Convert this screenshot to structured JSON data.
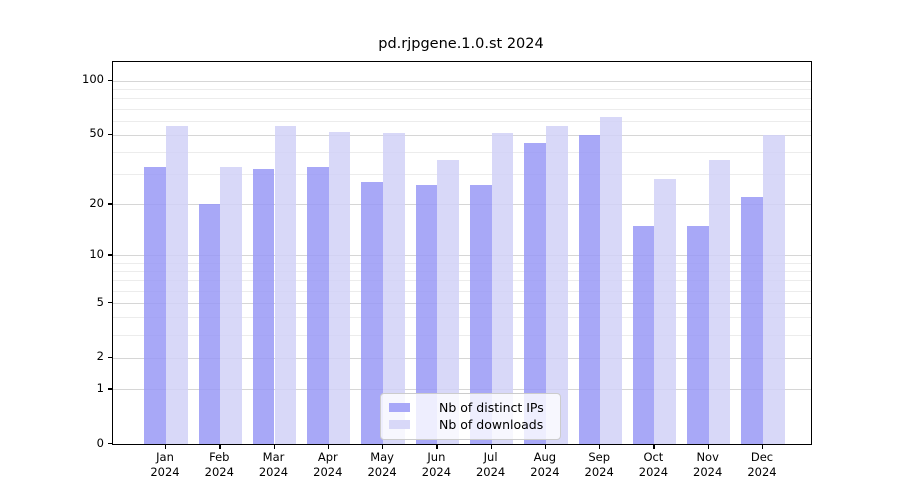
{
  "title": "pd.rjpgene.1.0.st 2024",
  "colors": {
    "distinct_ips_bar": "#a8a8f8",
    "downloads_bar": "#d8d8f8",
    "bar_fill_ips": "#9999f6",
    "bar_fill_downloads": "#d1d1f7",
    "bar_alpha": 0.85,
    "grid_major": "#d6d6d6",
    "grid_minor": "#ececec",
    "axis": "#000000"
  },
  "legend": {
    "items": [
      {
        "label": "Nb of distinct IPs",
        "swatch": "#a8a8f8"
      },
      {
        "label": "Nb of downloads",
        "swatch": "#d8d8f8"
      }
    ]
  },
  "chart_data": {
    "type": "bar",
    "title": "pd.rjpgene.1.0.st 2024",
    "scale": "log1p",
    "categories": [
      "Jan 2024",
      "Feb 2024",
      "Mar 2024",
      "Apr 2024",
      "May 2024",
      "Jun 2024",
      "Jul 2024",
      "Aug 2024",
      "Sep 2024",
      "Oct 2024",
      "Nov 2024",
      "Dec 2024"
    ],
    "series": [
      {
        "name": "Nb of distinct IPs",
        "fill": "#9999f6",
        "legend_swatch": "#a8a8f8",
        "values": [
          33,
          20,
          32,
          33,
          27,
          26,
          26,
          45,
          50,
          15,
          15,
          22
        ]
      },
      {
        "name": "Nb of downloads",
        "fill": "#d1d1f7",
        "legend_swatch": "#d8d8f8",
        "values": [
          56,
          33,
          56,
          52,
          51,
          36,
          51,
          56,
          63,
          28,
          36,
          50
        ]
      }
    ],
    "xlabel": "",
    "ylabel": "",
    "y_ticks": [
      100,
      50,
      20,
      10,
      5,
      2,
      1,
      0
    ],
    "y_minor_gridlines": [
      3,
      4,
      6,
      7,
      8,
      9,
      30,
      40,
      60,
      70,
      80,
      90
    ],
    "ylim": [
      0,
      127
    ],
    "grid": "horizontal",
    "legend_position": "bottom-center-inside"
  }
}
